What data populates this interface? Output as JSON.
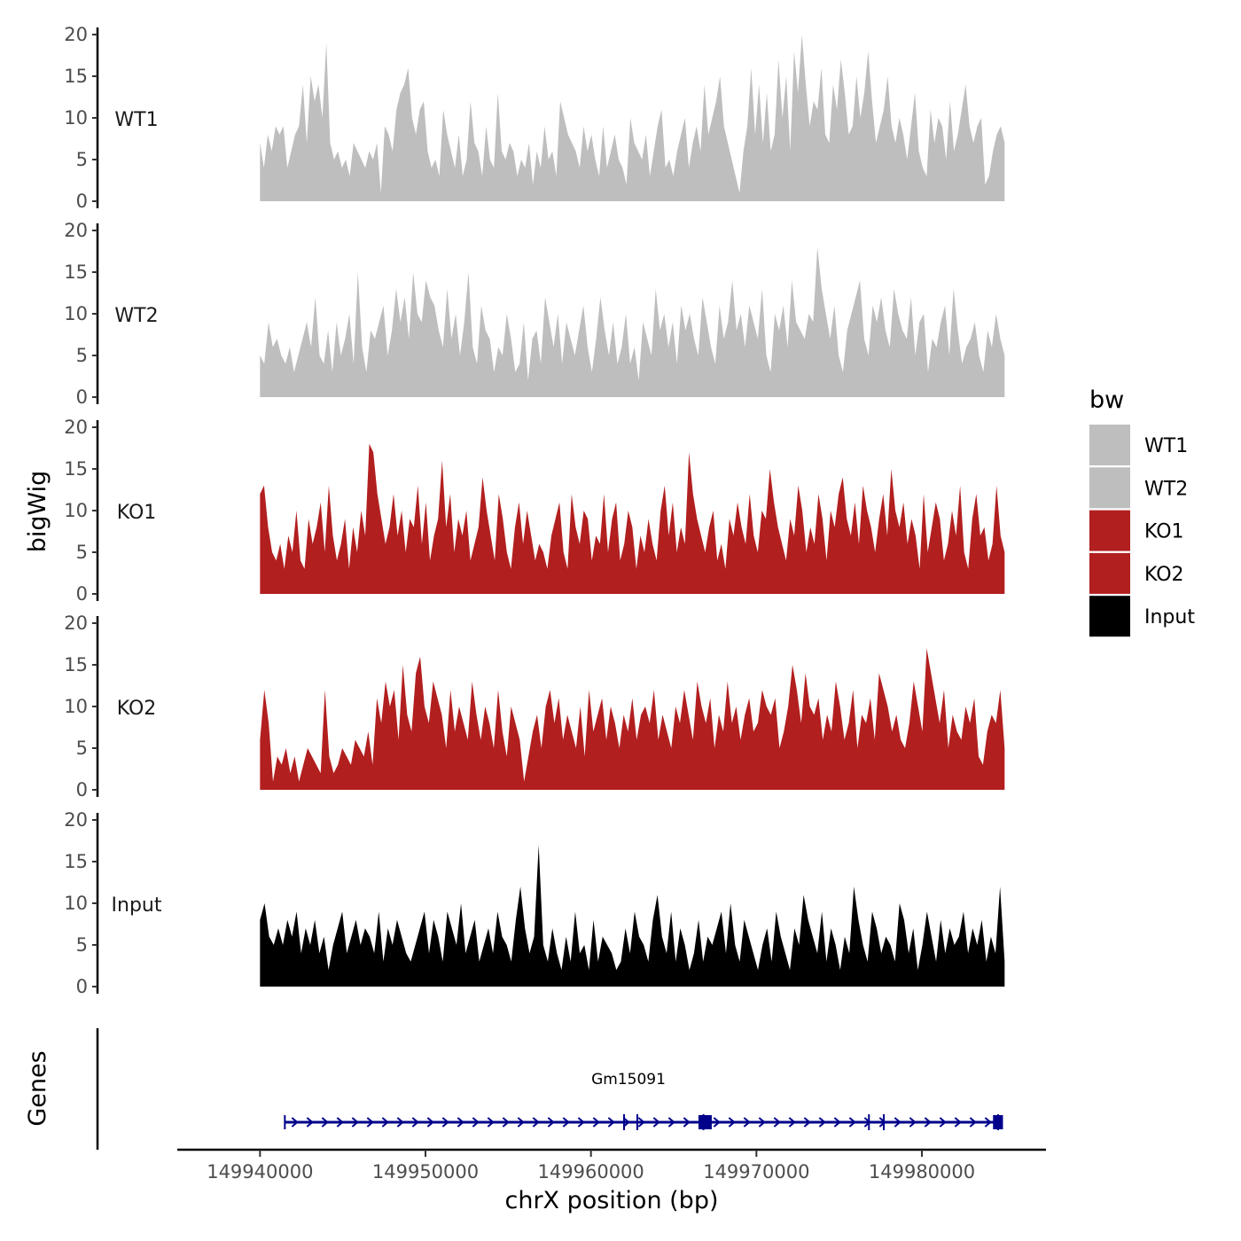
{
  "chart_data": {
    "type": "area",
    "title": "",
    "ylabel": "bigWig",
    "xlabel": "chrX position (bp)",
    "genes_label": "Genes",
    "ylim": [
      0,
      20
    ],
    "y_ticks": [
      0,
      5,
      10,
      15,
      20
    ],
    "y_tick_labels": [
      "0",
      "5",
      "10",
      "15",
      "20"
    ],
    "xlim": [
      149935000,
      149987500
    ],
    "x_ticks": [
      149940000,
      149950000,
      149960000,
      149970000,
      149980000
    ],
    "x_tick_labels": [
      "149940000",
      "149950000",
      "149960000",
      "149970000",
      "149980000"
    ],
    "x_range": [
      149940000,
      149985000
    ],
    "legend": {
      "title": "bw",
      "position": "right",
      "entries": [
        {
          "label": "WT1",
          "color": "#bebebe"
        },
        {
          "label": "WT2",
          "color": "#bebebe"
        },
        {
          "label": "KO1",
          "color": "#b21f1f"
        },
        {
          "label": "KO2",
          "color": "#b21f1f"
        },
        {
          "label": "Input",
          "color": "#000000"
        }
      ]
    },
    "series": [
      {
        "name": "WT1",
        "color": "#bebebe",
        "values": [
          7,
          4,
          8,
          6,
          9,
          8,
          9,
          4,
          6,
          8,
          9,
          14,
          7,
          15,
          12,
          14,
          10,
          19,
          7,
          5,
          6,
          4,
          5,
          3,
          7,
          6,
          5,
          4,
          6,
          5,
          7,
          1,
          9,
          8,
          6,
          11,
          13,
          14,
          16,
          10,
          8,
          11,
          12,
          6,
          4,
          5,
          3,
          11,
          8,
          6,
          4,
          8,
          3,
          5,
          12,
          7,
          6,
          3,
          9,
          5,
          4,
          13,
          6,
          5,
          7,
          6,
          3,
          5,
          4,
          7,
          2,
          6,
          4,
          9,
          5,
          6,
          3,
          12,
          10,
          8,
          7,
          6,
          4,
          9,
          6,
          8,
          5,
          3,
          9,
          4,
          6,
          8,
          5,
          4,
          2,
          10,
          7,
          6,
          5,
          8,
          3,
          6,
          9,
          11,
          4,
          5,
          3,
          6,
          8,
          10,
          4,
          7,
          9,
          6,
          14,
          8,
          10,
          12,
          15,
          9,
          7,
          5,
          3,
          1,
          6,
          9,
          16,
          8,
          14,
          7,
          13,
          6,
          8,
          17,
          10,
          15,
          6,
          18,
          13,
          20,
          14,
          9,
          12,
          11,
          16,
          8,
          7,
          14,
          11,
          17,
          13,
          8,
          9,
          15,
          10,
          13,
          18,
          12,
          7,
          9,
          11,
          15,
          9,
          7,
          10,
          8,
          5,
          9,
          13,
          6,
          4,
          3,
          11,
          7,
          10,
          9,
          5,
          12,
          6,
          8,
          11,
          14,
          9,
          7,
          9,
          10,
          2,
          3,
          6,
          8,
          9,
          7
        ]
      },
      {
        "name": "WT2",
        "color": "#bebebe",
        "values": [
          5,
          4,
          9,
          6,
          7,
          5,
          4,
          6,
          3,
          5,
          7,
          9,
          6,
          12,
          5,
          4,
          8,
          3,
          9,
          5,
          7,
          10,
          4,
          15,
          6,
          3,
          8,
          7,
          9,
          11,
          5,
          8,
          13,
          9,
          12,
          7,
          15,
          10,
          9,
          14,
          12,
          11,
          8,
          6,
          13,
          7,
          10,
          5,
          9,
          15,
          6,
          4,
          11,
          8,
          7,
          3,
          6,
          5,
          10,
          7,
          3,
          4,
          9,
          2,
          7,
          8,
          4,
          12,
          9,
          6,
          10,
          4,
          9,
          7,
          5,
          8,
          11,
          6,
          3,
          7,
          12,
          8,
          5,
          9,
          4,
          6,
          10,
          4,
          6,
          2,
          9,
          7,
          5,
          13,
          8,
          10,
          6,
          9,
          4,
          11,
          8,
          10,
          7,
          5,
          12,
          9,
          6,
          4,
          11,
          7,
          9,
          14,
          8,
          10,
          6,
          11,
          9,
          7,
          13,
          5,
          3,
          10,
          8,
          11,
          6,
          14,
          9,
          8,
          7,
          10,
          9,
          18,
          13,
          10,
          7,
          11,
          5,
          3,
          8,
          10,
          12,
          14,
          7,
          5,
          11,
          9,
          12,
          8,
          6,
          13,
          10,
          8,
          7,
          12,
          5,
          9,
          10,
          3,
          7,
          6,
          9,
          11,
          5,
          13,
          8,
          4,
          6,
          7,
          9,
          5,
          3,
          8,
          6,
          10,
          7,
          5
        ]
      },
      {
        "name": "KO1",
        "color": "#b21f1f",
        "values": [
          12,
          13,
          8,
          5,
          4,
          6,
          3,
          7,
          5,
          10,
          4,
          3,
          9,
          6,
          8,
          11,
          5,
          13,
          7,
          4,
          6,
          9,
          3,
          8,
          5,
          10,
          7,
          18,
          17,
          12,
          9,
          6,
          8,
          12,
          7,
          10,
          5,
          9,
          8,
          13,
          6,
          11,
          4,
          7,
          9,
          16,
          8,
          12,
          5,
          9,
          7,
          10,
          4,
          6,
          8,
          14,
          10,
          7,
          4,
          12,
          9,
          5,
          3,
          8,
          11,
          6,
          10,
          7,
          4,
          6,
          5,
          3,
          7,
          9,
          11,
          5,
          3,
          12,
          8,
          6,
          10,
          9,
          4,
          7,
          6,
          12,
          5,
          9,
          11,
          4,
          6,
          10,
          8,
          3,
          7,
          5,
          9,
          6,
          4,
          10,
          13,
          7,
          11,
          5,
          8,
          6,
          17,
          12,
          9,
          7,
          5,
          8,
          10,
          4,
          6,
          3,
          9,
          7,
          11,
          8,
          6,
          12,
          7,
          5,
          10,
          9,
          15,
          11,
          8,
          6,
          4,
          9,
          7,
          13,
          10,
          5,
          8,
          6,
          12,
          9,
          4,
          10,
          8,
          12,
          14,
          9,
          7,
          11,
          6,
          13,
          10,
          8,
          5,
          9,
          12,
          7,
          15,
          10,
          8,
          11,
          6,
          9,
          7,
          3,
          12,
          5,
          8,
          11,
          9,
          4,
          6,
          10,
          7,
          13,
          5,
          3,
          9,
          12,
          7,
          8,
          4,
          6,
          13,
          7,
          5
        ]
      },
      {
        "name": "KO2",
        "color": "#b21f1f",
        "values": [
          6,
          12,
          8,
          1,
          4,
          3,
          5,
          2,
          4,
          1,
          3,
          5,
          4,
          3,
          2,
          12,
          4,
          2,
          3,
          5,
          4,
          3,
          6,
          5,
          4,
          7,
          3,
          11,
          8,
          13,
          10,
          12,
          6,
          15,
          9,
          7,
          14,
          16,
          10,
          8,
          13,
          11,
          9,
          5,
          12,
          7,
          10,
          8,
          6,
          13,
          9,
          6,
          10,
          8,
          5,
          12,
          7,
          4,
          10,
          8,
          6,
          1,
          4,
          7,
          9,
          5,
          10,
          12,
          8,
          11,
          6,
          9,
          7,
          5,
          10,
          4,
          12,
          7,
          9,
          11,
          6,
          10,
          8,
          5,
          9,
          7,
          11,
          6,
          9,
          10,
          8,
          12,
          6,
          9,
          7,
          5,
          10,
          8,
          12,
          9,
          6,
          13,
          10,
          8,
          11,
          5,
          9,
          7,
          13,
          8,
          10,
          6,
          9,
          11,
          7,
          8,
          12,
          10,
          9,
          11,
          5,
          7,
          10,
          15,
          12,
          8,
          14,
          10,
          9,
          11,
          6,
          9,
          7,
          13,
          10,
          6,
          8,
          12,
          5,
          9,
          8,
          11,
          6,
          14,
          12,
          10,
          7,
          9,
          6,
          5,
          8,
          13,
          10,
          7,
          17,
          14,
          11,
          8,
          12,
          5,
          9,
          7,
          6,
          10,
          8,
          11,
          4,
          3,
          7,
          9,
          8,
          12,
          5
        ]
      },
      {
        "name": "Input",
        "color": "#000000",
        "values": [
          8,
          10,
          6,
          5,
          7,
          5,
          8,
          6,
          9,
          4,
          7,
          5,
          8,
          4,
          6,
          2,
          5,
          7,
          9,
          4,
          6,
          8,
          5,
          7,
          6,
          4,
          9,
          3,
          7,
          5,
          8,
          6,
          4,
          3,
          5,
          7,
          9,
          4,
          8,
          6,
          3,
          9,
          7,
          5,
          10,
          4,
          6,
          8,
          3,
          5,
          7,
          4,
          9,
          6,
          5,
          3,
          8,
          12,
          7,
          4,
          6,
          17,
          5,
          3,
          7,
          4,
          2,
          6,
          3,
          9,
          4,
          5,
          2,
          8,
          3,
          6,
          5,
          4,
          2,
          3,
          7,
          4,
          9,
          6,
          5,
          3,
          8,
          11,
          6,
          4,
          9,
          3,
          7,
          5,
          2,
          4,
          8,
          3,
          6,
          5,
          7,
          9,
          4,
          10,
          5,
          3,
          8,
          6,
          4,
          2,
          5,
          7,
          3,
          9,
          6,
          4,
          2,
          7,
          5,
          11,
          8,
          6,
          4,
          9,
          3,
          7,
          5,
          2,
          6,
          4,
          12,
          8,
          5,
          3,
          9,
          7,
          4,
          6,
          5,
          3,
          10,
          8,
          4,
          7,
          2,
          5,
          9,
          6,
          3,
          8,
          4,
          7,
          5,
          6,
          9,
          4,
          7,
          5,
          8,
          3,
          6,
          4,
          12,
          3
        ]
      }
    ],
    "genes": [
      {
        "name": "Gm15091",
        "start": 149941500,
        "end": 149984700,
        "strand": "+",
        "exons": [
          149962000,
          149962800,
          149966800,
          149976800,
          149977700,
          149984600
        ],
        "cds_blocks": [
          [
            149966500,
            149967300
          ],
          [
            149984300,
            149984900
          ]
        ]
      }
    ]
  }
}
